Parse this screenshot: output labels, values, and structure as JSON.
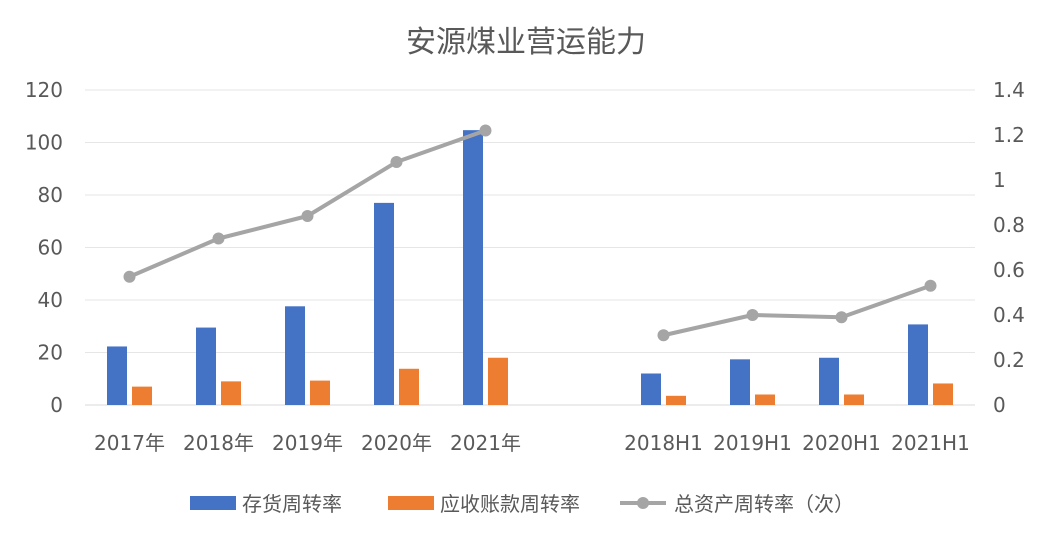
{
  "chart_data": {
    "type": "bar",
    "title": "安源煤业营运能力",
    "categories": [
      "2017年",
      "2018年",
      "2019年",
      "2020年",
      "2021年",
      "",
      "2018H1",
      "2019H1",
      "2020H1",
      "2021H1"
    ],
    "series": [
      {
        "name": "存货周转率",
        "type": "bar",
        "axis": "left",
        "color": "#4472C4",
        "values": [
          22.3,
          29.5,
          37.6,
          77,
          104.7,
          null,
          12,
          17.4,
          18,
          30.7
        ]
      },
      {
        "name": "应收账款周转率",
        "type": "bar",
        "axis": "left",
        "color": "#ED7D31",
        "values": [
          7,
          9,
          9.3,
          13.8,
          18,
          null,
          3.5,
          4,
          4,
          8.2
        ]
      },
      {
        "name": "总资产周转率（次）",
        "type": "line",
        "axis": "right",
        "color": "#A5A5A5",
        "values": [
          0.57,
          0.74,
          0.84,
          1.08,
          1.22,
          null,
          0.31,
          0.4,
          0.39,
          0.53
        ]
      }
    ],
    "y_left": {
      "min": 0,
      "max": 120,
      "ticks": [
        "0",
        "20",
        "40",
        "60",
        "80",
        "100",
        "120"
      ]
    },
    "y_right": {
      "min": 0,
      "max": 1.4,
      "ticks": [
        "0",
        "0.2",
        "0.4",
        "0.6",
        "0.8",
        "1",
        "1.2",
        "1.4"
      ]
    },
    "grid": true,
    "legend_position": "bottom"
  }
}
